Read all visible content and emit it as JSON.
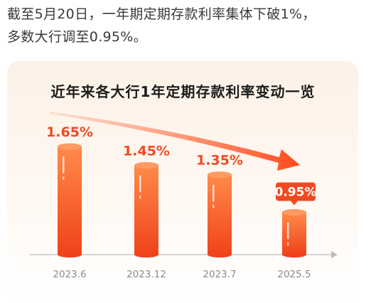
{
  "intro": {
    "line1": "截至5月20日，一年期定期存款利率集体下破1%，",
    "line2": "多数大行调至0.95%。"
  },
  "chart_data": {
    "type": "bar",
    "title": "近年来各大行1年定期存款利率变动一览",
    "categories": [
      "2023.6",
      "2023.12",
      "2023.7",
      "2025.5"
    ],
    "values": [
      1.65,
      1.45,
      1.35,
      0.95
    ],
    "value_labels": [
      "1.65%",
      "1.45%",
      "1.35%",
      "0.95%"
    ],
    "highlight_index": 3,
    "trend_arrow": "down",
    "colors": {
      "bar_top": "#ff8a4a",
      "bar_bottom": "#f0431b",
      "label": "#f04a22",
      "highlight_badge": "#f04a22",
      "axis": "#bbbbbb",
      "tick": "#8a8a8a"
    }
  }
}
